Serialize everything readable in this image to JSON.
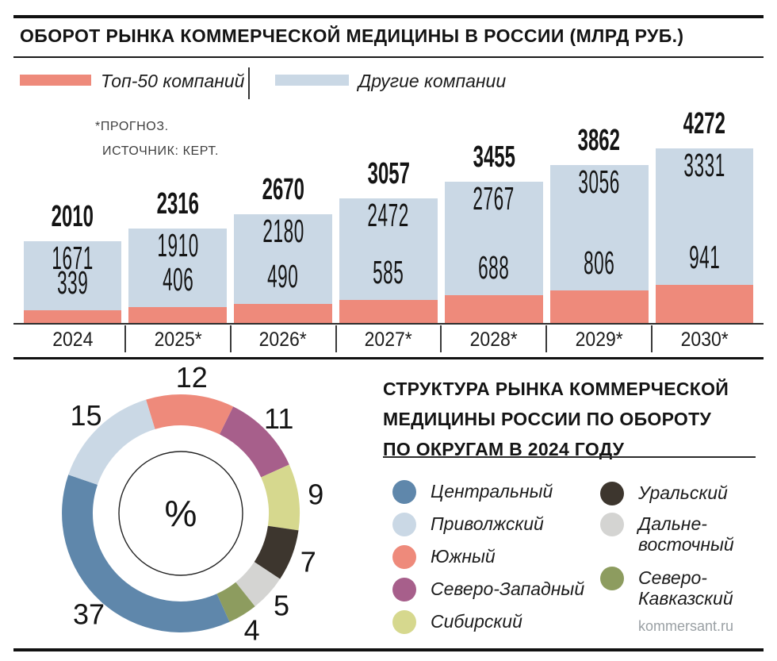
{
  "page": {
    "footer": "kommersant.ru"
  },
  "bar_section": {
    "legend": [
      {
        "label": "Топ-50 компаний",
        "color": "#ee8a7b"
      },
      {
        "label": "Другие компании",
        "color": "#cad8e5"
      }
    ]
  },
  "donut_section": {
    "center_label": "%",
    "legend_left": [
      {
        "label": "Центральный",
        "color": "#5f87ab"
      },
      {
        "label": "Приволжский",
        "color": "#cad8e5"
      },
      {
        "label": "Южный",
        "color": "#ee8a7b"
      },
      {
        "label": "Северо-Западный",
        "color": "#a75f8b"
      },
      {
        "label": "Сибирский",
        "color": "#d6d88e"
      }
    ],
    "legend_right": [
      {
        "label": "Уральский",
        "color": "#3d362e"
      },
      {
        "label": "Дальне-\nвосточный",
        "color": "#d4d4d2"
      },
      {
        "label": "Северо-\nКавказский",
        "color": "#8d9c5f"
      }
    ]
  },
  "chart_data": [
    {
      "type": "bar",
      "stacked": true,
      "title": "ОБОРОТ РЫНКА КОММЕРЧЕСКОЙ МЕДИЦИНЫ В РОССИИ (МЛРД РУБ.)",
      "notes": [
        "*ПРОГНОЗ.",
        "ИСТОЧНИК: КЕРТ."
      ],
      "categories": [
        "2024",
        "2025*",
        "2026*",
        "2027*",
        "2028*",
        "2029*",
        "2030*"
      ],
      "series": [
        {
          "name": "Топ-50 компаний",
          "color": "#ee8a7b",
          "values": [
            339,
            406,
            490,
            585,
            688,
            806,
            941
          ]
        },
        {
          "name": "Другие компании",
          "color": "#cad8e5",
          "values": [
            1671,
            1910,
            2180,
            2472,
            2767,
            3056,
            3331
          ]
        }
      ],
      "totals": [
        2010,
        2316,
        2670,
        3057,
        3455,
        3862,
        4272
      ],
      "ylim": [
        0,
        4272
      ],
      "grid": false,
      "legend_position": "top"
    },
    {
      "type": "pie",
      "donut": true,
      "title": "СТРУКТУРА РЫНКА КОММЕРЧЕСКОЙ\nМЕДИЦИНЫ РОССИИ ПО ОБОРОТУ\nПО ОКРУГАМ В 2024 ГОДУ",
      "unit": "%",
      "start_angle_deg": -17,
      "slices": [
        {
          "label": "Южный",
          "value": 12,
          "color": "#ee8a7b"
        },
        {
          "label": "Северо-Западный",
          "value": 11,
          "color": "#a75f8b"
        },
        {
          "label": "Сибирский",
          "value": 9,
          "color": "#d6d88e"
        },
        {
          "label": "Уральский",
          "value": 7,
          "color": "#3d362e"
        },
        {
          "label": "Дальневосточный",
          "value": 5,
          "color": "#d4d4d2"
        },
        {
          "label": "Северо-Кавказский",
          "value": 4,
          "color": "#8d9c5f"
        },
        {
          "label": "Центральный",
          "value": 37,
          "color": "#5f87ab"
        },
        {
          "label": "Приволжский",
          "value": 15,
          "color": "#cad8e5"
        }
      ],
      "legend_position": "right"
    }
  ]
}
